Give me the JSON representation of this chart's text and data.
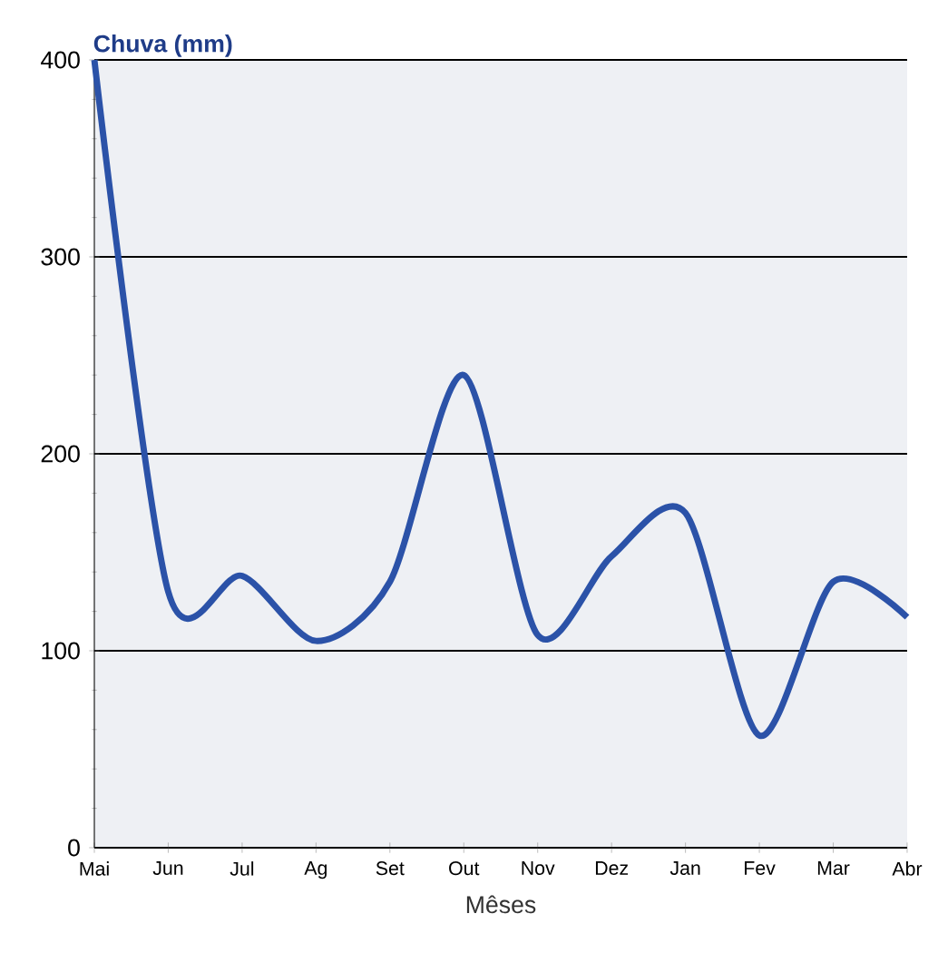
{
  "chart_data": {
    "type": "line",
    "xlabel": "Mêses",
    "ylabel": "Chuva (mm)",
    "categories": [
      "Mai",
      "Jun",
      "Jul",
      "Ag",
      "Set",
      "Out",
      "Nov",
      "Dez",
      "Jan",
      "Fev",
      "Mar",
      "Abr"
    ],
    "values": [
      400,
      130,
      138,
      105,
      135,
      240,
      108,
      148,
      170,
      57,
      135,
      117
    ],
    "color": "#2b52a8",
    "ylim": [
      0,
      400
    ],
    "yticks": [
      0,
      100,
      200,
      300,
      400
    ],
    "grid": "y",
    "marker": "none",
    "line_style": "solid"
  }
}
